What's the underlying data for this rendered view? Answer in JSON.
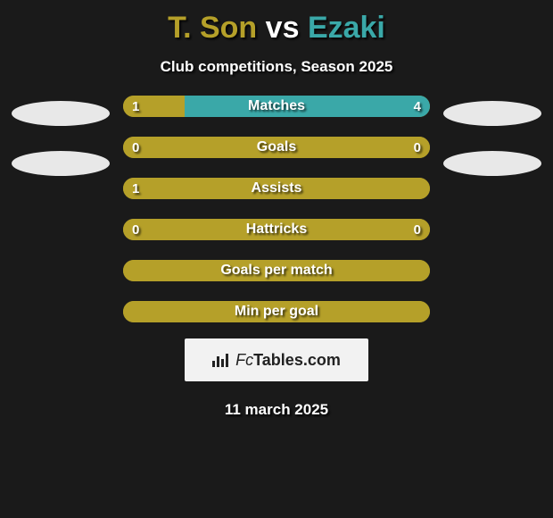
{
  "title": {
    "player1": "T. Son",
    "vs": "vs",
    "player2": "Ezaki",
    "player1_color": "#b5a029",
    "vs_color": "#ffffff",
    "player2_color": "#3aa8a8"
  },
  "subtitle": "Club competitions, Season 2025",
  "date": "11 march 2025",
  "colors": {
    "background": "#1a1a1a",
    "bar_left": "#b5a029",
    "bar_right": "#3aa8a8",
    "bar_neutral": "#b5a029",
    "oval_left": "#e8e8e8",
    "oval_right": "#e8e8e8",
    "logo_bg": "#f2f2f2",
    "logo_text": "#222222"
  },
  "bars": [
    {
      "label": "Matches",
      "left_val": "1",
      "right_val": "4",
      "left_pct": 20,
      "right_pct": 80,
      "show_vals": true
    },
    {
      "label": "Goals",
      "left_val": "0",
      "right_val": "0",
      "left_pct": 100,
      "right_pct": 0,
      "show_vals": true
    },
    {
      "label": "Assists",
      "left_val": "1",
      "right_val": "",
      "left_pct": 100,
      "right_pct": 0,
      "show_vals": true
    },
    {
      "label": "Hattricks",
      "left_val": "0",
      "right_val": "0",
      "left_pct": 100,
      "right_pct": 0,
      "show_vals": true
    },
    {
      "label": "Goals per match",
      "left_val": "",
      "right_val": "",
      "left_pct": 100,
      "right_pct": 0,
      "show_vals": false
    },
    {
      "label": "Min per goal",
      "left_val": "",
      "right_val": "",
      "left_pct": 100,
      "right_pct": 0,
      "show_vals": false
    }
  ],
  "side_ovals": {
    "left_count": 2,
    "right_count": 2
  },
  "logo": {
    "fc": "Fc",
    "rest": "Tables.com"
  }
}
